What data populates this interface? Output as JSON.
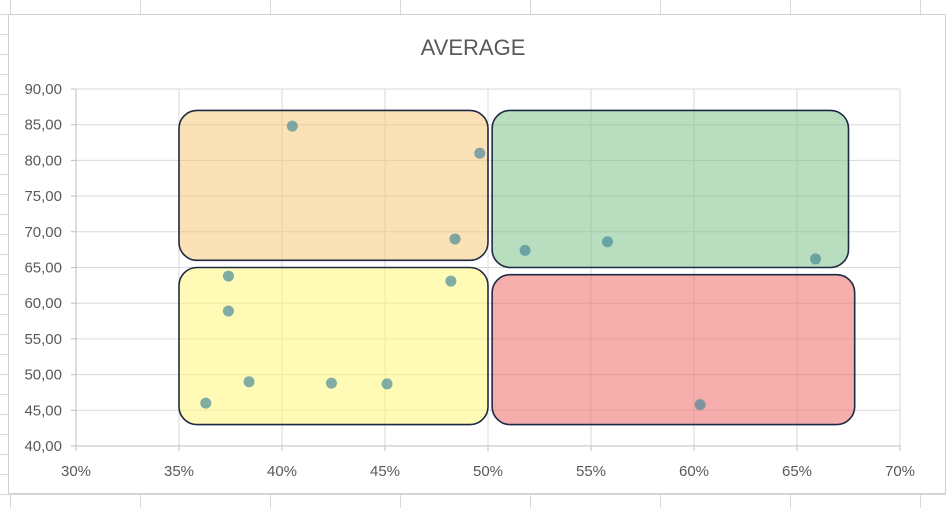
{
  "chart_data": {
    "type": "scatter",
    "title": "AVERAGE",
    "xlabel": "",
    "ylabel": "",
    "xlim": [
      0.3,
      0.7
    ],
    "ylim": [
      40,
      90
    ],
    "x_ticks": [
      0.3,
      0.35,
      0.4,
      0.45,
      0.5,
      0.55,
      0.6,
      0.65,
      0.7
    ],
    "x_tick_labels": [
      "30%",
      "35%",
      "40%",
      "45%",
      "50%",
      "55%",
      "60%",
      "65%",
      "70%"
    ],
    "y_ticks": [
      40,
      45,
      50,
      55,
      60,
      65,
      70,
      75,
      80,
      85,
      90
    ],
    "y_tick_labels": [
      "40,00",
      "45,00",
      "50,00",
      "55,00",
      "60,00",
      "65,00",
      "70,00",
      "75,00",
      "80,00",
      "85,00",
      "90,00"
    ],
    "grid": true,
    "legend": "none",
    "marker_color": "#4a8a9a",
    "series": [
      {
        "points": [
          {
            "x": 0.405,
            "y": 84.8
          },
          {
            "x": 0.496,
            "y": 81.0
          },
          {
            "x": 0.484,
            "y": 69.0
          },
          {
            "x": 0.482,
            "y": 63.1
          },
          {
            "x": 0.374,
            "y": 63.8
          },
          {
            "x": 0.374,
            "y": 58.9
          },
          {
            "x": 0.384,
            "y": 49.0
          },
          {
            "x": 0.424,
            "y": 48.8
          },
          {
            "x": 0.451,
            "y": 48.7
          },
          {
            "x": 0.363,
            "y": 46.0
          },
          {
            "x": 0.518,
            "y": 67.4
          },
          {
            "x": 0.558,
            "y": 68.6
          },
          {
            "x": 0.659,
            "y": 66.2
          },
          {
            "x": 0.603,
            "y": 45.8
          }
        ]
      }
    ],
    "quadrants": [
      {
        "color": "#f5c87a",
        "x_range": [
          0.35,
          0.5
        ],
        "y_range": [
          66,
          87
        ]
      },
      {
        "color": "#7dc18b",
        "x_range": [
          0.502,
          0.675
        ],
        "y_range": [
          65,
          87
        ]
      },
      {
        "color": "#fff77a",
        "x_range": [
          0.35,
          0.5
        ],
        "y_range": [
          43,
          65
        ]
      },
      {
        "color": "#ef6c68",
        "x_range": [
          0.502,
          0.678
        ],
        "y_range": [
          43,
          64
        ]
      }
    ]
  }
}
